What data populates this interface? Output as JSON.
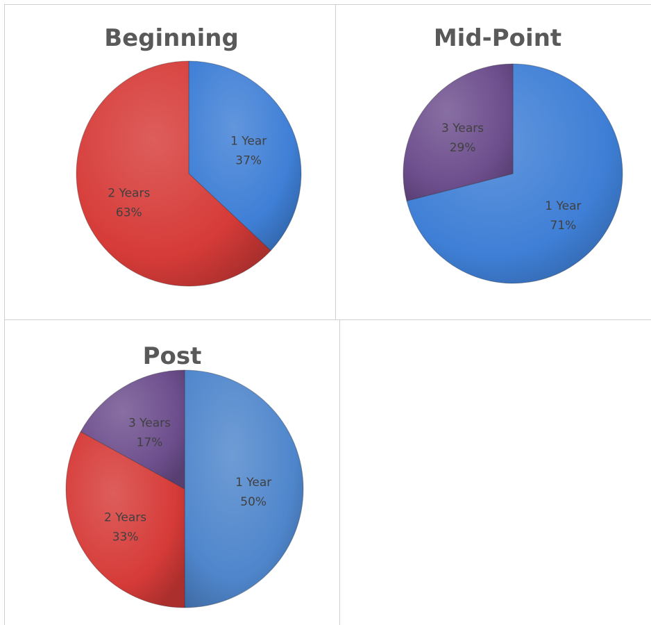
{
  "chart_data": [
    {
      "type": "pie",
      "title": "Beginning",
      "slices": [
        {
          "name": "1 Year",
          "value": 37,
          "label": "37%",
          "color": "#3f7fd6"
        },
        {
          "name": "2 Years",
          "value": 63,
          "label": "63%",
          "color": "#d63b38"
        }
      ]
    },
    {
      "type": "pie",
      "title": "Mid-Point",
      "slices": [
        {
          "name": "1 Year",
          "value": 71,
          "label": "71%",
          "color": "#3f7fd6"
        },
        {
          "name": "3 Years",
          "value": 29,
          "label": "29%",
          "color": "#6e4f8e"
        }
      ]
    },
    {
      "type": "pie",
      "title": "Post",
      "slices": [
        {
          "name": "1 Year",
          "value": 50,
          "label": "50%",
          "color": "#4f86cc"
        },
        {
          "name": "2 Years",
          "value": 33,
          "label": "33%",
          "color": "#d63b38"
        },
        {
          "name": "3 Years",
          "value": 17,
          "label": "17%",
          "color": "#6e4f8e"
        }
      ]
    }
  ]
}
